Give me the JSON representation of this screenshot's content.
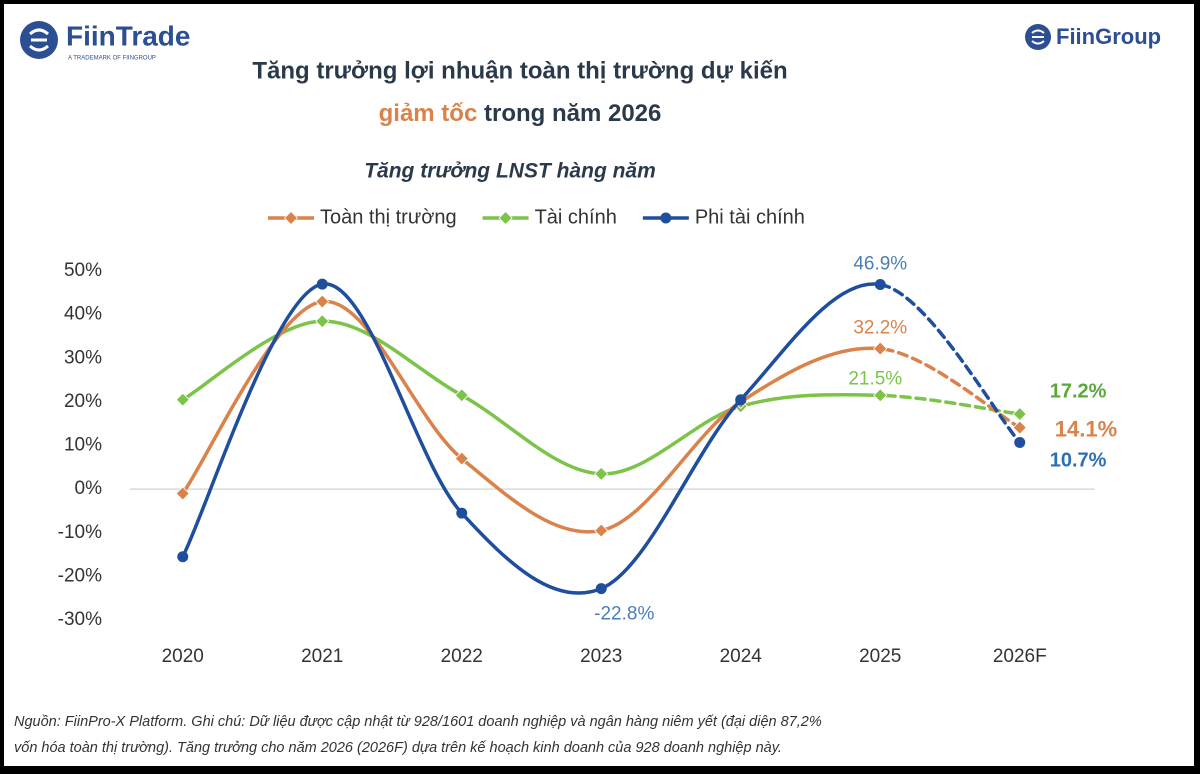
{
  "brand_left": "FiinTrade",
  "brand_left_tagline": "A TRADEMARK OF FIINGROUP",
  "brand_right": "FiinGroup",
  "chart_data": {
    "type": "line",
    "title": "Tăng trưởng lợi nhuận toàn thị trường dự kiến",
    "title_highlight": "giảm tốc",
    "title_rest": "trong năm 2026",
    "subtitle": "Tăng trưởng LNST hàng năm",
    "categories": [
      "2020",
      "2021",
      "2022",
      "2023",
      "2024",
      "2025",
      "2026F"
    ],
    "series": [
      {
        "name": "Toàn thị trường",
        "color": "#d9824a",
        "marker": "diamond",
        "values": [
          -1,
          43,
          7,
          -9.5,
          20,
          32.2,
          14.1
        ],
        "value_labels": [
          null,
          null,
          null,
          null,
          null,
          "32.2%",
          "14.1%"
        ]
      },
      {
        "name": "Tài chính",
        "color": "#7cc34a",
        "marker": "diamond",
        "values": [
          20.5,
          38.5,
          21.5,
          3.5,
          19,
          21.5,
          17.2
        ],
        "value_labels": [
          null,
          null,
          null,
          null,
          null,
          "21.5%",
          "17.2%"
        ]
      },
      {
        "name": "Phi tài chính",
        "color": "#1f4e9c",
        "marker": "circle",
        "values": [
          -15.5,
          47,
          -5.5,
          -22.8,
          20.5,
          46.9,
          10.7
        ],
        "value_labels": [
          null,
          null,
          null,
          "-22.8%",
          null,
          "46.9%",
          "10.7%"
        ]
      }
    ],
    "ylim": [
      -30,
      50
    ],
    "yticks": [
      {
        "value": -30,
        "label": "-30%"
      },
      {
        "value": -20,
        "label": "-20%"
      },
      {
        "value": -10,
        "label": "-10%"
      },
      {
        "value": 0,
        "label": "0%"
      },
      {
        "value": 10,
        "label": "10%"
      },
      {
        "value": 20,
        "label": "20%"
      },
      {
        "value": 30,
        "label": "30%"
      },
      {
        "value": 40,
        "label": "40%"
      },
      {
        "value": 50,
        "label": "50%"
      }
    ],
    "grid": false,
    "smooth": true,
    "dashed_last_segments": 1,
    "legend": "top"
  },
  "footnote": [
    "Nguồn:  FiinPro-X Platform. Ghi chú: Dữ liệu được cập nhật từ 928/1601 doanh nghiệp và ngân hàng niêm yết (đại diện 87,2%",
    "vốn hóa toàn thị trường). Tăng trưởng cho năm 2026 (2026F) dựa trên kế hoạch kinh doanh của 928 doanh nghiệp này."
  ]
}
